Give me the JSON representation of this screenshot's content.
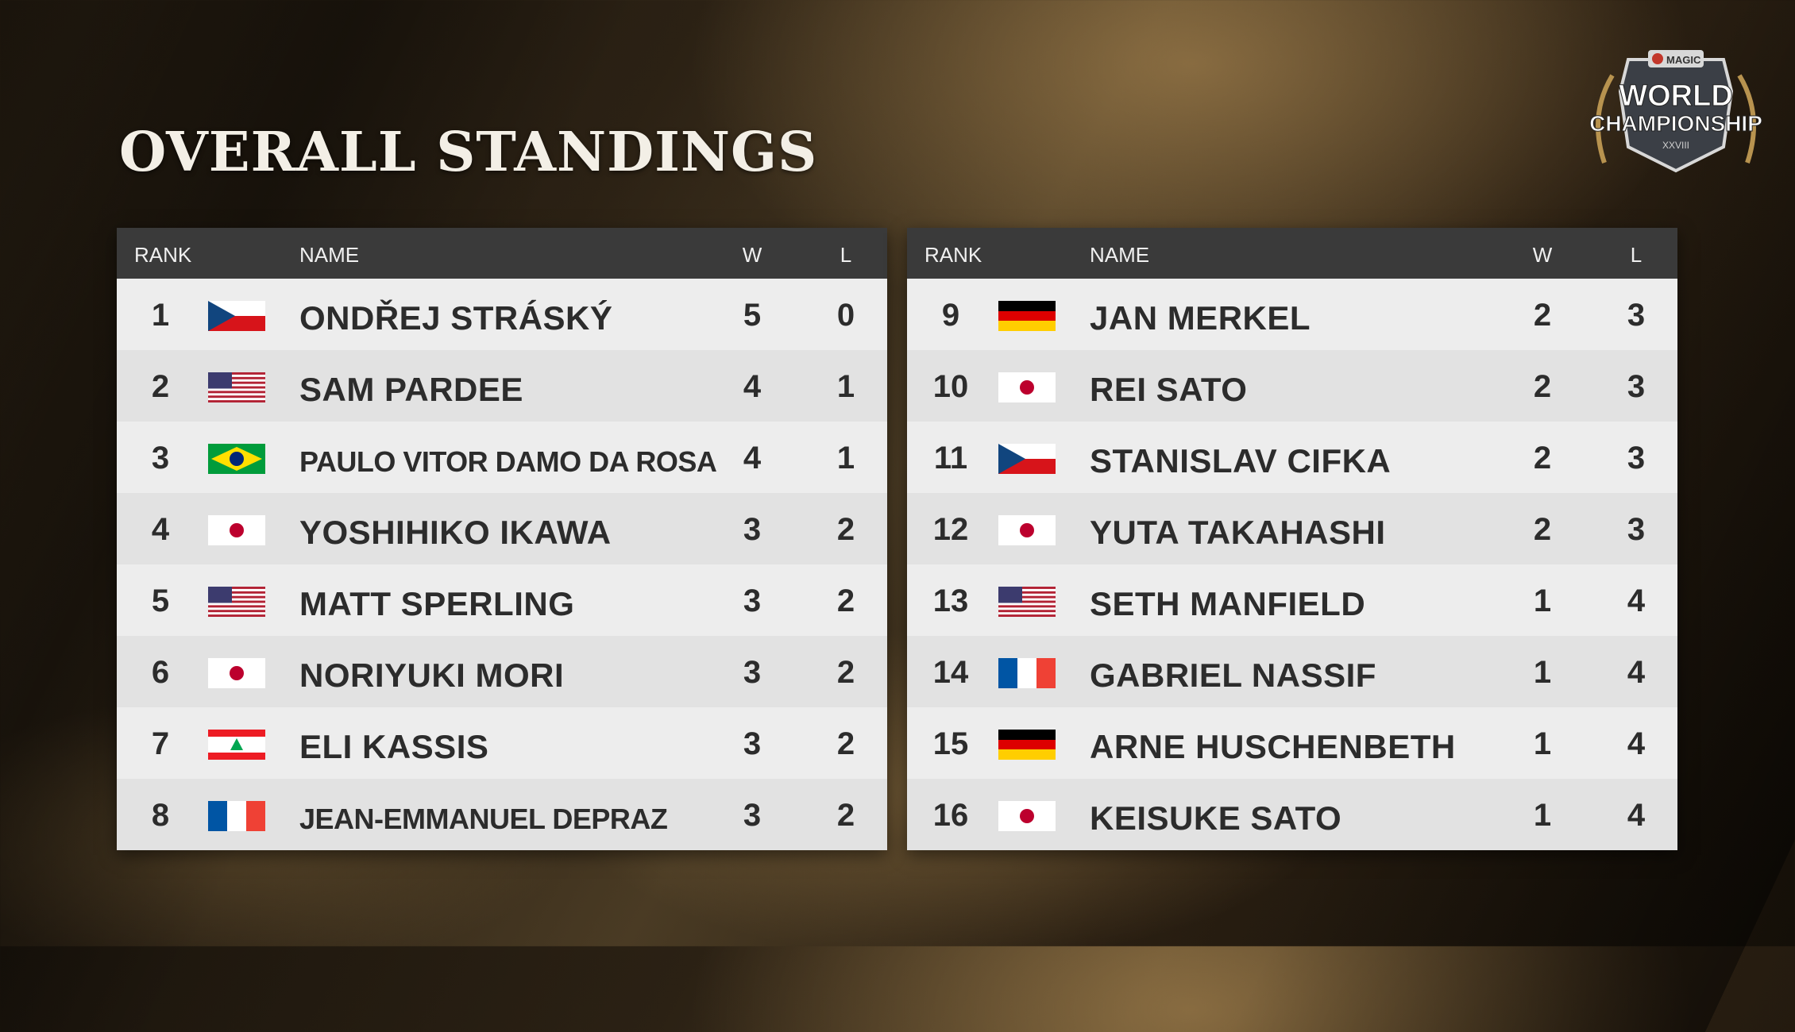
{
  "title": "OVERALL STANDINGS",
  "logo": {
    "brand": "MAGIC",
    "line1": "WORLD",
    "line2": "CHAMPIONSHIP",
    "edition": "XXVIII"
  },
  "headers": {
    "rank": "RANK",
    "name": "NAME",
    "wins": "W",
    "losses": "L"
  },
  "left": [
    {
      "rank": "1",
      "flag": "czech-flag-icon",
      "name": "ONDŘEJ STRÁSKÝ",
      "w": "5",
      "l": "0"
    },
    {
      "rank": "2",
      "flag": "usa-flag-icon",
      "name": "SAM PARDEE",
      "w": "4",
      "l": "1"
    },
    {
      "rank": "3",
      "flag": "brazil-flag-icon",
      "name": "PAULO VITOR DAMO DA ROSA",
      "w": "4",
      "l": "1"
    },
    {
      "rank": "4",
      "flag": "japan-flag-icon",
      "name": "YOSHIHIKO IKAWA",
      "w": "3",
      "l": "2"
    },
    {
      "rank": "5",
      "flag": "usa-flag-icon",
      "name": "MATT SPERLING",
      "w": "3",
      "l": "2"
    },
    {
      "rank": "6",
      "flag": "japan-flag-icon",
      "name": "NORIYUKI MORI",
      "w": "3",
      "l": "2"
    },
    {
      "rank": "7",
      "flag": "lebanon-flag-icon",
      "name": "ELI KASSIS",
      "w": "3",
      "l": "2"
    },
    {
      "rank": "8",
      "flag": "france-flag-icon",
      "name": "JEAN-EMMANUEL DEPRAZ",
      "w": "3",
      "l": "2"
    }
  ],
  "right": [
    {
      "rank": "9",
      "flag": "germany-flag-icon",
      "name": "JAN MERKEL",
      "w": "2",
      "l": "3"
    },
    {
      "rank": "10",
      "flag": "japan-flag-icon",
      "name": "REI SATO",
      "w": "2",
      "l": "3"
    },
    {
      "rank": "11",
      "flag": "czech-flag-icon",
      "name": "STANISLAV CIFKA",
      "w": "2",
      "l": "3"
    },
    {
      "rank": "12",
      "flag": "japan-flag-icon",
      "name": "YUTA TAKAHASHI",
      "w": "2",
      "l": "3"
    },
    {
      "rank": "13",
      "flag": "usa-flag-icon",
      "name": "SETH MANFIELD",
      "w": "1",
      "l": "4"
    },
    {
      "rank": "14",
      "flag": "france-flag-icon",
      "name": "GABRIEL NASSIF",
      "w": "1",
      "l": "4"
    },
    {
      "rank": "15",
      "flag": "germany-flag-icon",
      "name": "ARNE HUSCHENBETH",
      "w": "1",
      "l": "4"
    },
    {
      "rank": "16",
      "flag": "japan-flag-icon",
      "name": "KEISUKE SATO",
      "w": "1",
      "l": "4"
    }
  ],
  "colors": {
    "accent_gold": "#c9a45c",
    "header_bg": "#3a3a3a",
    "row_text": "#2c2c2c"
  }
}
